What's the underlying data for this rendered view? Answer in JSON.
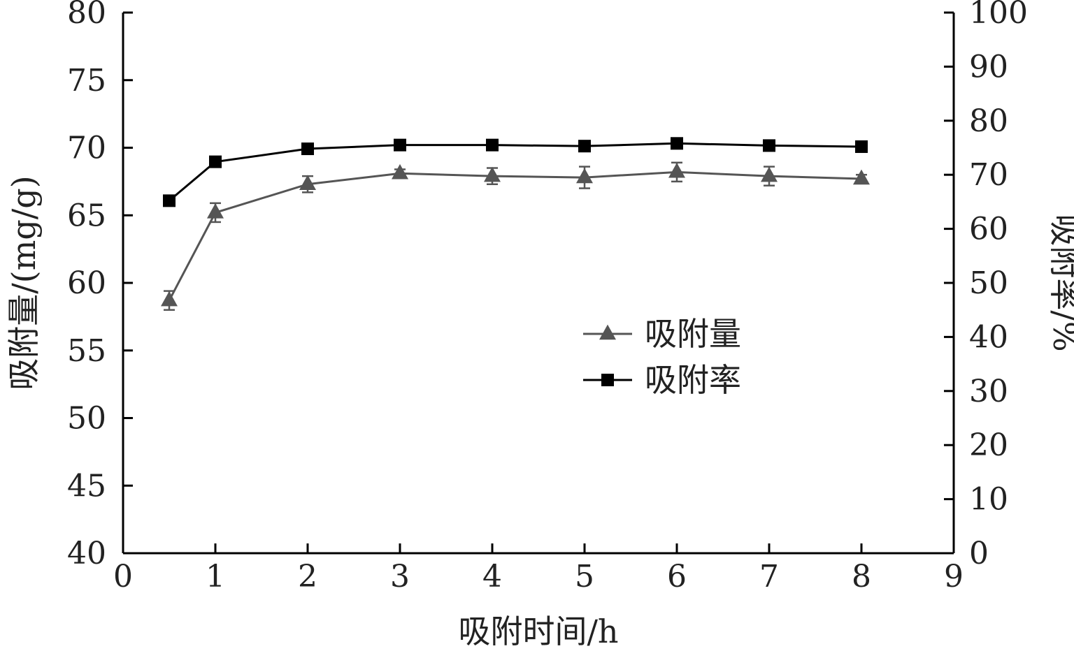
{
  "chart_data": {
    "type": "line",
    "xlabel": "吸附时间/h",
    "ylabel_left": "吸附量/(mg/g)",
    "ylabel_right": "吸附率/%",
    "xlim": [
      0,
      9
    ],
    "ylim_left": [
      40,
      80
    ],
    "ylim_right": [
      0,
      100
    ],
    "x_ticks": [
      "0",
      "1",
      "2",
      "3",
      "4",
      "5",
      "6",
      "7",
      "8",
      "9"
    ],
    "y_left_ticks": [
      "40",
      "45",
      "50",
      "55",
      "60",
      "65",
      "70",
      "75",
      "80"
    ],
    "y_right_ticks": [
      "0",
      "10",
      "20",
      "30",
      "40",
      "50",
      "60",
      "70",
      "80",
      "90",
      "100"
    ],
    "grid": false,
    "legend_position": "center-right",
    "series": [
      {
        "name": "吸附量",
        "axis": "left",
        "marker": "triangle",
        "color": "#555555",
        "x": [
          0.5,
          1,
          2,
          3,
          4,
          5,
          6,
          7,
          8
        ],
        "values": [
          58.7,
          65.2,
          67.3,
          68.1,
          67.9,
          67.8,
          68.2,
          67.9,
          67.7
        ],
        "error": [
          0.7,
          0.7,
          0.6,
          0.3,
          0.6,
          0.8,
          0.7,
          0.7,
          0.3
        ]
      },
      {
        "name": "吸附率",
        "axis": "right",
        "marker": "square",
        "color": "#000000",
        "x": [
          0.5,
          1,
          2,
          3,
          4,
          5,
          6,
          7,
          8
        ],
        "values": [
          65.2,
          72.4,
          74.8,
          75.5,
          75.5,
          75.3,
          75.8,
          75.4,
          75.2
        ]
      }
    ]
  }
}
